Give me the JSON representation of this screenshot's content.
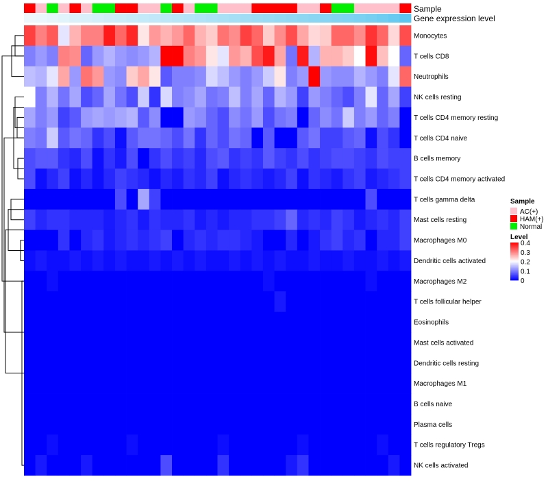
{
  "chart_data": {
    "type": "heatmap",
    "annotation_tracks": [
      {
        "title": "Sample"
      },
      {
        "title": "Gene expression level"
      }
    ],
    "sample_groups": [
      "HAM(+)",
      "AC(+)",
      "Normal",
      "AC(+)",
      "HAM(+)",
      "AC(+)",
      "Normal",
      "Normal",
      "HAM(+)",
      "HAM(+)",
      "AC(+)",
      "AC(+)",
      "Normal",
      "HAM(+)",
      "AC(+)",
      "Normal",
      "Normal",
      "AC(+)",
      "AC(+)",
      "AC(+)",
      "HAM(+)",
      "HAM(+)",
      "HAM(+)",
      "HAM(+)",
      "AC(+)",
      "AC(+)",
      "HAM(+)",
      "Normal",
      "Normal",
      "AC(+)",
      "AC(+)",
      "AC(+)",
      "AC(+)",
      "HAM(+)"
    ],
    "expression_track": [
      0.02,
      0.03,
      0.04,
      0.05,
      0.07,
      0.08,
      0.09,
      0.1,
      0.11,
      0.12,
      0.13,
      0.14,
      0.15,
      0.16,
      0.17,
      0.18,
      0.19,
      0.2,
      0.21,
      0.22,
      0.23,
      0.24,
      0.25,
      0.26,
      0.27,
      0.28,
      0.29,
      0.3,
      0.31,
      0.32,
      0.33,
      0.35,
      0.37,
      0.4
    ],
    "rows": [
      "Monocytes",
      "T cells CD8",
      "Neutrophils",
      "NK cells resting",
      "T cells CD4 memory resting",
      "T cells CD4 naive",
      "B cells memory",
      "T cells CD4 memory activated",
      "T cells gamma delta",
      "Mast cells resting",
      "Macrophages M0",
      "Dendritic cells activated",
      "Macrophages M2",
      "T cells follicular helper",
      "Eosinophils",
      "Mast cells activated",
      "Dendritic cells resting",
      "Macrophages M1",
      "B cells naive",
      "Plasma cells",
      "T cells regulatory  Tregs",
      "NK cells activated"
    ],
    "values": [
      [
        0.35,
        0.3,
        0.33,
        0.18,
        0.26,
        0.3,
        0.3,
        0.38,
        0.32,
        0.37,
        0.22,
        0.28,
        0.26,
        0.28,
        0.32,
        0.26,
        0.24,
        0.31,
        0.29,
        0.35,
        0.32,
        0.24,
        0.29,
        0.34,
        0.27,
        0.23,
        0.24,
        0.32,
        0.32,
        0.29,
        0.36,
        0.32,
        0.23,
        0.34
      ],
      [
        0.1,
        0.12,
        0.1,
        0.3,
        0.29,
        0.08,
        0.12,
        0.14,
        0.12,
        0.11,
        0.12,
        0.14,
        0.4,
        0.4,
        0.3,
        0.28,
        0.22,
        0.18,
        0.28,
        0.26,
        0.34,
        0.38,
        0.27,
        0.09,
        0.38,
        0.14,
        0.26,
        0.26,
        0.24,
        0.2,
        0.39,
        0.25,
        0.2,
        0.08
      ],
      [
        0.15,
        0.14,
        0.18,
        0.27,
        0.12,
        0.31,
        0.28,
        0.12,
        0.11,
        0.24,
        0.27,
        0.22,
        0.07,
        0.1,
        0.1,
        0.11,
        0.17,
        0.15,
        0.12,
        0.1,
        0.12,
        0.16,
        0.22,
        0.1,
        0.12,
        0.4,
        0.12,
        0.11,
        0.11,
        0.14,
        0.12,
        0.1,
        0.18,
        0.32
      ],
      [
        0.2,
        0.1,
        0.14,
        0.09,
        0.13,
        0.06,
        0.08,
        0.13,
        0.09,
        0.06,
        0.16,
        0.04,
        0.17,
        0.1,
        0.11,
        0.13,
        0.09,
        0.1,
        0.15,
        0.1,
        0.13,
        0.08,
        0.14,
        0.12,
        0.05,
        0.12,
        0.1,
        0.08,
        0.06,
        0.1,
        0.18,
        0.08,
        0.13,
        0.05
      ],
      [
        0.13,
        0.1,
        0.12,
        0.05,
        0.07,
        0.12,
        0.13,
        0.12,
        0.13,
        0.14,
        0.07,
        0.11,
        0.0,
        0.0,
        0.12,
        0.11,
        0.08,
        0.06,
        0.11,
        0.09,
        0.12,
        0.06,
        0.09,
        0.1,
        0.0,
        0.08,
        0.11,
        0.09,
        0.16,
        0.1,
        0.12,
        0.08,
        0.1,
        0.0
      ],
      [
        0.1,
        0.09,
        0.16,
        0.07,
        0.09,
        0.08,
        0.04,
        0.06,
        0.01,
        0.07,
        0.09,
        0.09,
        0.08,
        0.06,
        0.09,
        0.04,
        0.08,
        0.06,
        0.09,
        0.08,
        0.0,
        0.07,
        0.0,
        0.0,
        0.07,
        0.09,
        0.05,
        0.05,
        0.07,
        0.08,
        0.01,
        0.06,
        0.04,
        0.0
      ],
      [
        0.06,
        0.07,
        0.07,
        0.04,
        0.03,
        0.06,
        0.01,
        0.04,
        0.02,
        0.06,
        0.0,
        0.04,
        0.06,
        0.04,
        0.05,
        0.03,
        0.06,
        0.07,
        0.04,
        0.05,
        0.04,
        0.07,
        0.05,
        0.04,
        0.06,
        0.04,
        0.05,
        0.06,
        0.06,
        0.05,
        0.04,
        0.06,
        0.05,
        0.05
      ],
      [
        0.06,
        0.01,
        0.03,
        0.05,
        0.01,
        0.03,
        0.01,
        0.03,
        0.05,
        0.04,
        0.03,
        0.01,
        0.03,
        0.02,
        0.04,
        0.03,
        0.05,
        0.01,
        0.03,
        0.04,
        0.03,
        0.02,
        0.03,
        0.05,
        0.01,
        0.04,
        0.03,
        0.02,
        0.04,
        0.05,
        0.02,
        0.03,
        0.04,
        0.05
      ],
      [
        0.0,
        0.0,
        0.0,
        0.0,
        0.0,
        0.0,
        0.0,
        0.0,
        0.06,
        0.0,
        0.13,
        0.05,
        0.0,
        0.0,
        0.0,
        0.0,
        0.0,
        0.0,
        0.0,
        0.0,
        0.0,
        0.0,
        0.0,
        0.0,
        0.0,
        0.0,
        0.0,
        0.0,
        0.0,
        0.0,
        0.06,
        0.0,
        0.0,
        0.0
      ],
      [
        0.05,
        0.03,
        0.04,
        0.04,
        0.03,
        0.03,
        0.03,
        0.02,
        0.03,
        0.04,
        0.02,
        0.04,
        0.03,
        0.03,
        0.04,
        0.02,
        0.03,
        0.02,
        0.03,
        0.03,
        0.04,
        0.04,
        0.05,
        0.08,
        0.03,
        0.04,
        0.03,
        0.05,
        0.04,
        0.02,
        0.03,
        0.04,
        0.03,
        0.05
      ],
      [
        0.0,
        0.0,
        0.0,
        0.04,
        0.0,
        0.03,
        0.04,
        0.02,
        0.03,
        0.04,
        0.03,
        0.04,
        0.05,
        0.0,
        0.03,
        0.04,
        0.03,
        0.04,
        0.04,
        0.03,
        0.02,
        0.0,
        0.0,
        0.03,
        0.0,
        0.02,
        0.04,
        0.05,
        0.03,
        0.04,
        0.0,
        0.03,
        0.03,
        0.05
      ],
      [
        0.01,
        0.02,
        0.01,
        0.01,
        0.02,
        0.01,
        0.02,
        0.01,
        0.02,
        0.01,
        0.01,
        0.02,
        0.01,
        0.02,
        0.01,
        0.02,
        0.01,
        0.01,
        0.02,
        0.01,
        0.02,
        0.01,
        0.02,
        0.01,
        0.01,
        0.02,
        0.01,
        0.01,
        0.02,
        0.01,
        0.01,
        0.02,
        0.01,
        0.02
      ],
      [
        0.0,
        0.0,
        0.01,
        0.0,
        0.0,
        0.0,
        0.0,
        0.0,
        0.0,
        0.0,
        0.0,
        0.0,
        0.0,
        0.0,
        0.0,
        0.0,
        0.0,
        0.0,
        0.0,
        0.0,
        0.0,
        0.01,
        0.0,
        0.0,
        0.0,
        0.0,
        0.0,
        0.0,
        0.0,
        0.0,
        0.01,
        0.0,
        0.0,
        0.0
      ],
      [
        0.0,
        0.0,
        0.0,
        0.0,
        0.0,
        0.0,
        0.0,
        0.0,
        0.0,
        0.0,
        0.0,
        0.0,
        0.0,
        0.0,
        0.0,
        0.0,
        0.0,
        0.0,
        0.0,
        0.0,
        0.0,
        0.0,
        0.02,
        0.0,
        0.0,
        0.0,
        0.0,
        0.0,
        0.0,
        0.0,
        0.0,
        0.0,
        0.0,
        0.0
      ],
      [
        0.0,
        0.0,
        0.0,
        0.0,
        0.0,
        0.0,
        0.0,
        0.0,
        0.0,
        0.0,
        0.0,
        0.0,
        0.0,
        0.0,
        0.0,
        0.0,
        0.0,
        0.0,
        0.0,
        0.0,
        0.0,
        0.0,
        0.0,
        0.0,
        0.0,
        0.0,
        0.0,
        0.0,
        0.0,
        0.0,
        0.0,
        0.0,
        0.0,
        0.0
      ],
      [
        0.0,
        0.0,
        0.0,
        0.0,
        0.0,
        0.0,
        0.0,
        0.0,
        0.0,
        0.0,
        0.0,
        0.0,
        0.0,
        0.0,
        0.0,
        0.0,
        0.0,
        0.0,
        0.0,
        0.0,
        0.0,
        0.0,
        0.0,
        0.0,
        0.0,
        0.0,
        0.0,
        0.0,
        0.0,
        0.0,
        0.0,
        0.0,
        0.0,
        0.0
      ],
      [
        0.0,
        0.0,
        0.0,
        0.0,
        0.0,
        0.0,
        0.0,
        0.0,
        0.0,
        0.0,
        0.0,
        0.0,
        0.0,
        0.0,
        0.0,
        0.0,
        0.0,
        0.0,
        0.0,
        0.0,
        0.0,
        0.0,
        0.0,
        0.0,
        0.0,
        0.0,
        0.0,
        0.0,
        0.0,
        0.0,
        0.0,
        0.0,
        0.0,
        0.0
      ],
      [
        0.0,
        0.0,
        0.0,
        0.0,
        0.0,
        0.0,
        0.0,
        0.0,
        0.0,
        0.0,
        0.0,
        0.0,
        0.0,
        0.0,
        0.0,
        0.0,
        0.0,
        0.0,
        0.0,
        0.0,
        0.0,
        0.0,
        0.0,
        0.0,
        0.0,
        0.0,
        0.0,
        0.0,
        0.0,
        0.0,
        0.0,
        0.0,
        0.0,
        0.0
      ],
      [
        0.0,
        0.0,
        0.0,
        0.0,
        0.0,
        0.0,
        0.0,
        0.0,
        0.0,
        0.0,
        0.0,
        0.0,
        0.0,
        0.0,
        0.0,
        0.0,
        0.0,
        0.0,
        0.0,
        0.0,
        0.0,
        0.0,
        0.0,
        0.0,
        0.0,
        0.0,
        0.0,
        0.0,
        0.0,
        0.0,
        0.0,
        0.0,
        0.0,
        0.0
      ],
      [
        0.0,
        0.0,
        0.0,
        0.0,
        0.0,
        0.0,
        0.0,
        0.0,
        0.0,
        0.0,
        0.0,
        0.0,
        0.0,
        0.0,
        0.0,
        0.0,
        0.0,
        0.0,
        0.0,
        0.0,
        0.0,
        0.0,
        0.0,
        0.0,
        0.0,
        0.0,
        0.0,
        0.0,
        0.0,
        0.0,
        0.0,
        0.0,
        0.0,
        0.0
      ],
      [
        0.0,
        0.0,
        0.01,
        0.0,
        0.0,
        0.0,
        0.0,
        0.0,
        0.0,
        0.01,
        0.0,
        0.0,
        0.0,
        0.0,
        0.0,
        0.0,
        0.0,
        0.01,
        0.0,
        0.0,
        0.0,
        0.0,
        0.0,
        0.0,
        0.01,
        0.0,
        0.0,
        0.0,
        0.0,
        0.0,
        0.0,
        0.01,
        0.0,
        0.0
      ],
      [
        0.0,
        0.02,
        0.0,
        0.0,
        0.0,
        0.02,
        0.0,
        0.0,
        0.0,
        0.0,
        0.0,
        0.0,
        0.06,
        0.0,
        0.0,
        0.0,
        0.0,
        0.04,
        0.0,
        0.0,
        0.0,
        0.0,
        0.0,
        0.02,
        0.04,
        0.0,
        0.0,
        0.0,
        0.0,
        0.0,
        0.0,
        0.0,
        0.02,
        0.0
      ]
    ],
    "legend": {
      "sample": {
        "title": "Sample",
        "entries": [
          {
            "label": "AC(+)",
            "color": "#ffc0cb"
          },
          {
            "label": "HAM(+)",
            "color": "#ff0000"
          },
          {
            "label": "Normal",
            "color": "#00ee00"
          }
        ]
      },
      "level": {
        "title": "Level",
        "ticks": [
          "0.4",
          "0.3",
          "0.2",
          "0.1",
          "0"
        ],
        "min": 0,
        "max": 0.4
      }
    },
    "colors": {
      "low": "#0000ff",
      "mid": "#ffffff",
      "high": "#ff0000",
      "expression_low": "#eef8fc",
      "expression_high": "#5bc6ef"
    }
  }
}
